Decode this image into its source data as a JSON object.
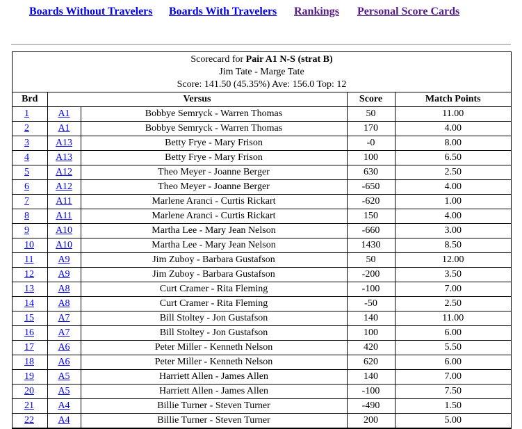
{
  "nav": {
    "links": [
      {
        "label": "Boards Without Travelers",
        "visited": false
      },
      {
        "label": "Boards With Travelers",
        "visited": false
      },
      {
        "label": "Rankings",
        "visited": true
      },
      {
        "label": "Personal Score Cards",
        "visited": true
      }
    ]
  },
  "scorecard": {
    "title_prefix": "Scorecard for ",
    "title_bold": "Pair A1 N-S (strat B)",
    "players": "Jim Tate - Marge Tate",
    "summary": "Score: 141.50 (45.35%) Ave: 156.0 Top: 12"
  },
  "table": {
    "headers": {
      "brd": "Brd",
      "versus": "Versus",
      "score": "Score",
      "mp": "Match Points"
    },
    "rows": [
      {
        "brd": "1",
        "pair": "A1",
        "names": "Bobbye Semryck - Warren Thomas",
        "score": "50",
        "mp": "11.00"
      },
      {
        "brd": "2",
        "pair": "A1",
        "names": "Bobbye Semryck - Warren Thomas",
        "score": "170",
        "mp": "4.00"
      },
      {
        "brd": "3",
        "pair": "A13",
        "names": "Betty Frye - Mary Frison",
        "score": "-0",
        "mp": "8.00"
      },
      {
        "brd": "4",
        "pair": "A13",
        "names": "Betty Frye - Mary Frison",
        "score": "100",
        "mp": "6.50"
      },
      {
        "brd": "5",
        "pair": "A12",
        "names": "Theo Meyer - Joanne Berger",
        "score": "630",
        "mp": "2.50"
      },
      {
        "brd": "6",
        "pair": "A12",
        "names": "Theo Meyer - Joanne Berger",
        "score": "-650",
        "mp": "4.00"
      },
      {
        "brd": "7",
        "pair": "A11",
        "names": "Marlene Aranci - Curtis Rickart",
        "score": "-620",
        "mp": "1.00"
      },
      {
        "brd": "8",
        "pair": "A11",
        "names": "Marlene Aranci - Curtis Rickart",
        "score": "150",
        "mp": "4.00"
      },
      {
        "brd": "9",
        "pair": "A10",
        "names": "Martha Lee - Mary Jean Nelson",
        "score": "-660",
        "mp": "3.00"
      },
      {
        "brd": "10",
        "pair": "A10",
        "names": "Martha Lee - Mary Jean Nelson",
        "score": "1430",
        "mp": "8.50"
      },
      {
        "brd": "11",
        "pair": "A9",
        "names": "Jim Zuboy - Barbara Gustafson",
        "score": "50",
        "mp": "12.00"
      },
      {
        "brd": "12",
        "pair": "A9",
        "names": "Jim Zuboy - Barbara Gustafson",
        "score": "-200",
        "mp": "3.50"
      },
      {
        "brd": "13",
        "pair": "A8",
        "names": "Curt Cramer - Rita Fleming",
        "score": "-100",
        "mp": "7.00"
      },
      {
        "brd": "14",
        "pair": "A8",
        "names": "Curt Cramer - Rita Fleming",
        "score": "-50",
        "mp": "2.50"
      },
      {
        "brd": "15",
        "pair": "A7",
        "names": "Bill Stoltey - Jon Gustafson",
        "score": "140",
        "mp": "11.00"
      },
      {
        "brd": "16",
        "pair": "A7",
        "names": "Bill Stoltey - Jon Gustafson",
        "score": "100",
        "mp": "6.00"
      },
      {
        "brd": "17",
        "pair": "A6",
        "names": "Peter Miller - Kenneth Nelson",
        "score": "420",
        "mp": "5.50"
      },
      {
        "brd": "18",
        "pair": "A6",
        "names": "Peter Miller - Kenneth Nelson",
        "score": "620",
        "mp": "6.00"
      },
      {
        "brd": "19",
        "pair": "A5",
        "names": "Harriett Allen - James Allen",
        "score": "140",
        "mp": "7.00"
      },
      {
        "brd": "20",
        "pair": "A5",
        "names": "Harriett Allen - James Allen",
        "score": "-100",
        "mp": "7.50"
      },
      {
        "brd": "21",
        "pair": "A4",
        "names": "Billie Turner - Steven Turner",
        "score": "-490",
        "mp": "1.50"
      },
      {
        "brd": "22",
        "pair": "A4",
        "names": "Billie Turner - Steven Turner",
        "score": "200",
        "mp": "5.00"
      }
    ]
  },
  "colors": {
    "link": "#0000ee",
    "visited_link": "#551a8b",
    "text": "#000000",
    "background": "#ffffff"
  }
}
